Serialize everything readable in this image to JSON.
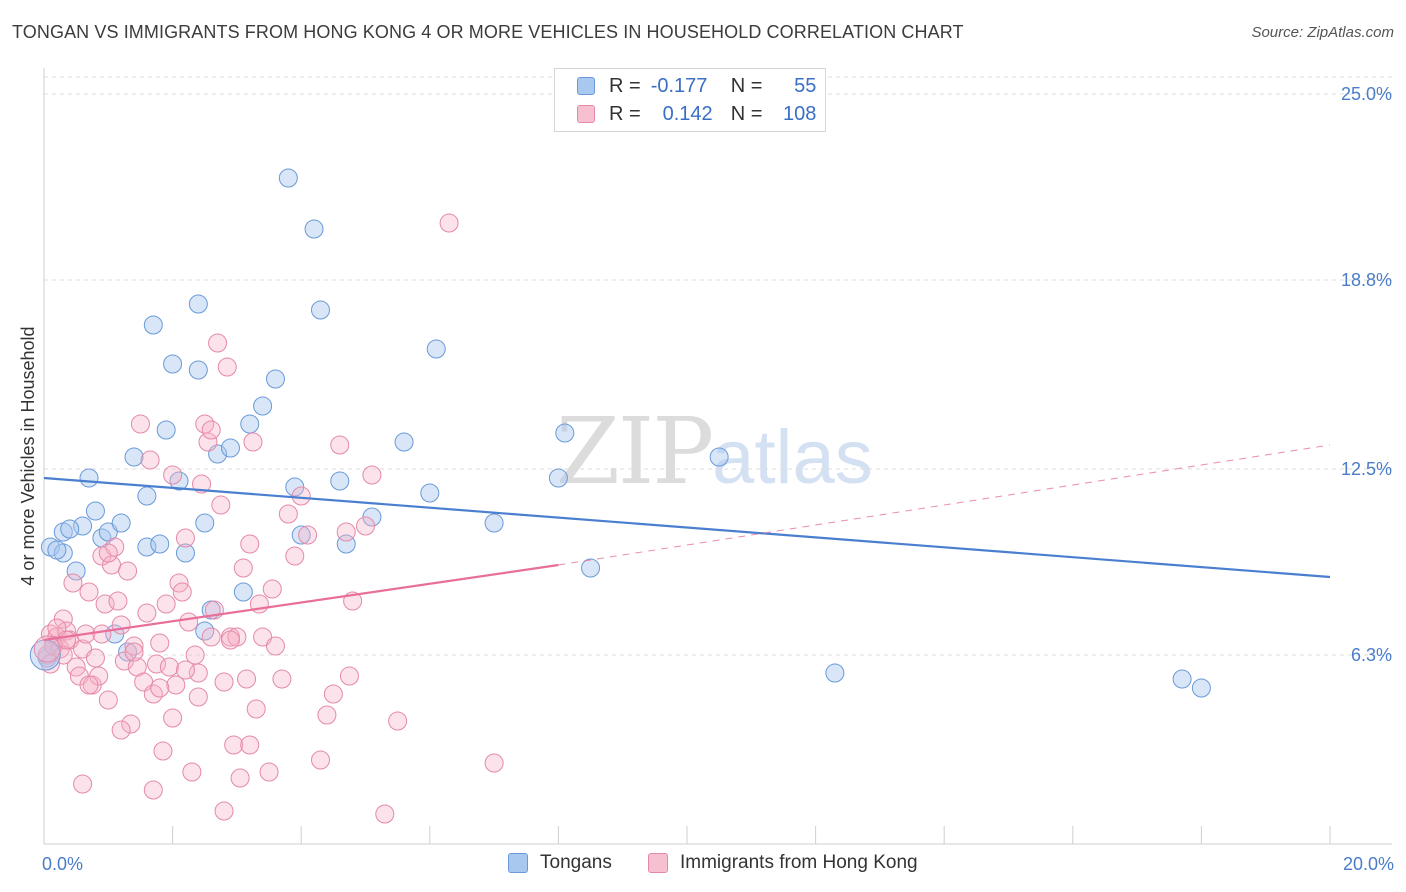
{
  "title": "TONGAN VS IMMIGRANTS FROM HONG KONG 4 OR MORE VEHICLES IN HOUSEHOLD CORRELATION CHART",
  "source": "Source: ZipAtlas.com",
  "watermark": {
    "part1": "ZIP",
    "part2": "atlas"
  },
  "legend": {
    "rows": [
      {
        "r_label": "R =",
        "r_value": "-0.177",
        "n_label": "N =",
        "n_value": "55",
        "color": "#a8c8f0",
        "border": "#6a9ad8"
      },
      {
        "r_label": "R =",
        "r_value": "0.142",
        "n_label": "N =",
        "n_value": "108",
        "color": "#f7c0d0",
        "border": "#e48aa8"
      }
    ]
  },
  "bottom_legend": [
    {
      "label": "Tongans",
      "color": "#a8c8f0",
      "border": "#6a9ad8"
    },
    {
      "label": "Immigrants from Hong Kong",
      "color": "#f7c0d0",
      "border": "#e48aa8"
    }
  ],
  "chart_data": {
    "type": "scatter",
    "title": "TONGAN VS IMMIGRANTS FROM HONG KONG 4 OR MORE VEHICLES IN HOUSEHOLD CORRELATION CHART",
    "xlabel": "",
    "ylabel": "4 or more Vehicles in Household",
    "xlim": [
      0,
      20
    ],
    "ylim": [
      0,
      25
    ],
    "x_tick_labels": [
      {
        "value": 0,
        "label": "0.0%"
      },
      {
        "value": 20,
        "label": "20.0%"
      }
    ],
    "y_tick_labels": [
      {
        "value": 6.3,
        "label": "6.3%"
      },
      {
        "value": 12.5,
        "label": "12.5%"
      },
      {
        "value": 18.8,
        "label": "18.8%"
      },
      {
        "value": 25.0,
        "label": "25.0%"
      }
    ],
    "grid": "horizontal dashed",
    "legend_position": "top-center",
    "colors": {
      "tongans": "#4a7fd0",
      "hongkong": "#e86f9a"
    },
    "series": [
      {
        "name": "Tongans",
        "color": "#4a7fd0",
        "trend": {
          "x": [
            0,
            20
          ],
          "y": [
            12.2,
            8.9
          ],
          "style": "solid"
        },
        "points": [
          [
            0.1,
            9.9
          ],
          [
            0.3,
            9.7
          ],
          [
            0.3,
            10.4
          ],
          [
            0.5,
            9.1
          ],
          [
            0.6,
            10.6
          ],
          [
            0.7,
            12.2
          ],
          [
            0.8,
            11.1
          ],
          [
            0.9,
            10.2
          ],
          [
            1.0,
            10.4
          ],
          [
            1.1,
            7.0
          ],
          [
            1.2,
            10.7
          ],
          [
            1.3,
            6.4
          ],
          [
            1.4,
            12.9
          ],
          [
            1.6,
            11.6
          ],
          [
            1.6,
            9.9
          ],
          [
            1.7,
            17.3
          ],
          [
            1.8,
            10.0
          ],
          [
            1.9,
            13.8
          ],
          [
            2.0,
            16.0
          ],
          [
            2.1,
            12.1
          ],
          [
            2.2,
            9.7
          ],
          [
            2.4,
            15.8
          ],
          [
            2.4,
            18.0
          ],
          [
            2.5,
            7.1
          ],
          [
            2.5,
            10.7
          ],
          [
            2.6,
            7.8
          ],
          [
            2.7,
            13.0
          ],
          [
            2.9,
            13.2
          ],
          [
            3.1,
            8.4
          ],
          [
            3.2,
            14.0
          ],
          [
            3.4,
            14.6
          ],
          [
            3.6,
            15.5
          ],
          [
            3.8,
            22.2
          ],
          [
            3.9,
            11.9
          ],
          [
            4.0,
            10.3
          ],
          [
            4.2,
            20.5
          ],
          [
            4.3,
            17.8
          ],
          [
            4.6,
            12.1
          ],
          [
            4.7,
            10.0
          ],
          [
            5.1,
            10.9
          ],
          [
            5.6,
            13.4
          ],
          [
            6.0,
            11.7
          ],
          [
            6.1,
            16.5
          ],
          [
            7.0,
            10.7
          ],
          [
            8.0,
            12.2
          ],
          [
            8.1,
            13.7
          ],
          [
            8.5,
            9.2
          ],
          [
            10.5,
            12.9
          ],
          [
            12.3,
            5.7
          ],
          [
            17.7,
            5.5
          ],
          [
            18.0,
            5.2
          ],
          [
            0.05,
            6.2
          ],
          [
            0.15,
            6.6
          ],
          [
            0.2,
            9.8
          ],
          [
            0.4,
            10.5
          ]
        ]
      },
      {
        "name": "Immigrants from Hong Kong",
        "color": "#e86f9a",
        "trend": {
          "x": [
            0,
            8
          ],
          "y": [
            6.8,
            9.3
          ],
          "style": "solid",
          "extended": {
            "x": [
              8,
              20
            ],
            "y": [
              9.3,
              13.3
            ],
            "style": "dashed"
          }
        },
        "points": [
          [
            0.05,
            6.3
          ],
          [
            0.1,
            7.0
          ],
          [
            0.15,
            6.6
          ],
          [
            0.2,
            6.9
          ],
          [
            0.25,
            6.5
          ],
          [
            0.3,
            7.5
          ],
          [
            0.35,
            7.1
          ],
          [
            0.4,
            6.8
          ],
          [
            0.45,
            8.7
          ],
          [
            0.5,
            5.9
          ],
          [
            0.55,
            5.6
          ],
          [
            0.6,
            6.5
          ],
          [
            0.65,
            7.0
          ],
          [
            0.7,
            8.4
          ],
          [
            0.75,
            5.3
          ],
          [
            0.8,
            6.2
          ],
          [
            0.85,
            5.6
          ],
          [
            0.9,
            9.6
          ],
          [
            0.95,
            8.0
          ],
          [
            1.0,
            4.8
          ],
          [
            1.05,
            9.3
          ],
          [
            1.1,
            9.9
          ],
          [
            1.15,
            8.1
          ],
          [
            1.2,
            7.3
          ],
          [
            1.25,
            6.1
          ],
          [
            1.3,
            9.1
          ],
          [
            1.35,
            4.0
          ],
          [
            1.4,
            6.6
          ],
          [
            1.45,
            5.9
          ],
          [
            1.5,
            14.0
          ],
          [
            1.55,
            5.4
          ],
          [
            1.6,
            7.7
          ],
          [
            1.65,
            12.8
          ],
          [
            1.7,
            5.0
          ],
          [
            1.75,
            6.0
          ],
          [
            1.8,
            6.7
          ],
          [
            1.85,
            3.1
          ],
          [
            1.9,
            8.0
          ],
          [
            1.95,
            5.9
          ],
          [
            2.0,
            12.3
          ],
          [
            2.05,
            5.3
          ],
          [
            2.1,
            8.7
          ],
          [
            2.15,
            8.4
          ],
          [
            2.2,
            10.2
          ],
          [
            2.25,
            7.4
          ],
          [
            2.3,
            2.4
          ],
          [
            2.35,
            6.3
          ],
          [
            2.4,
            5.7
          ],
          [
            2.45,
            12.0
          ],
          [
            2.5,
            14.0
          ],
          [
            2.55,
            13.4
          ],
          [
            2.6,
            13.8
          ],
          [
            2.65,
            7.8
          ],
          [
            2.7,
            16.7
          ],
          [
            2.75,
            11.3
          ],
          [
            2.8,
            5.4
          ],
          [
            2.85,
            15.9
          ],
          [
            2.9,
            6.9
          ],
          [
            2.95,
            3.3
          ],
          [
            3.0,
            6.9
          ],
          [
            3.05,
            2.2
          ],
          [
            3.1,
            9.2
          ],
          [
            3.15,
            5.5
          ],
          [
            3.2,
            10.0
          ],
          [
            3.25,
            13.4
          ],
          [
            3.3,
            4.5
          ],
          [
            3.35,
            8.0
          ],
          [
            3.4,
            6.9
          ],
          [
            3.5,
            2.4
          ],
          [
            3.55,
            8.5
          ],
          [
            3.6,
            6.6
          ],
          [
            3.7,
            5.5
          ],
          [
            3.8,
            11.0
          ],
          [
            3.9,
            9.6
          ],
          [
            4.0,
            11.6
          ],
          [
            4.1,
            10.3
          ],
          [
            4.3,
            2.8
          ],
          [
            4.4,
            4.3
          ],
          [
            4.5,
            5.0
          ],
          [
            4.6,
            13.3
          ],
          [
            4.7,
            10.4
          ],
          [
            4.75,
            5.6
          ],
          [
            4.8,
            8.1
          ],
          [
            5.0,
            10.6
          ],
          [
            5.1,
            12.3
          ],
          [
            5.3,
            1.0
          ],
          [
            5.5,
            4.1
          ],
          [
            6.3,
            20.7
          ],
          [
            7.0,
            2.7
          ],
          [
            0.6,
            2.0
          ],
          [
            1.7,
            1.8
          ],
          [
            2.0,
            4.2
          ],
          [
            2.4,
            4.9
          ],
          [
            2.8,
            1.1
          ],
          [
            1.2,
            3.8
          ],
          [
            1.4,
            6.4
          ],
          [
            0.3,
            6.3
          ],
          [
            0.2,
            7.2
          ],
          [
            0.35,
            6.8
          ],
          [
            0.1,
            6.0
          ],
          [
            0.7,
            5.3
          ],
          [
            1.0,
            9.7
          ],
          [
            1.8,
            5.2
          ],
          [
            2.6,
            6.9
          ],
          [
            3.2,
            3.3
          ],
          [
            2.9,
            6.8
          ],
          [
            0.9,
            7.0
          ],
          [
            2.2,
            5.8
          ]
        ]
      }
    ]
  }
}
